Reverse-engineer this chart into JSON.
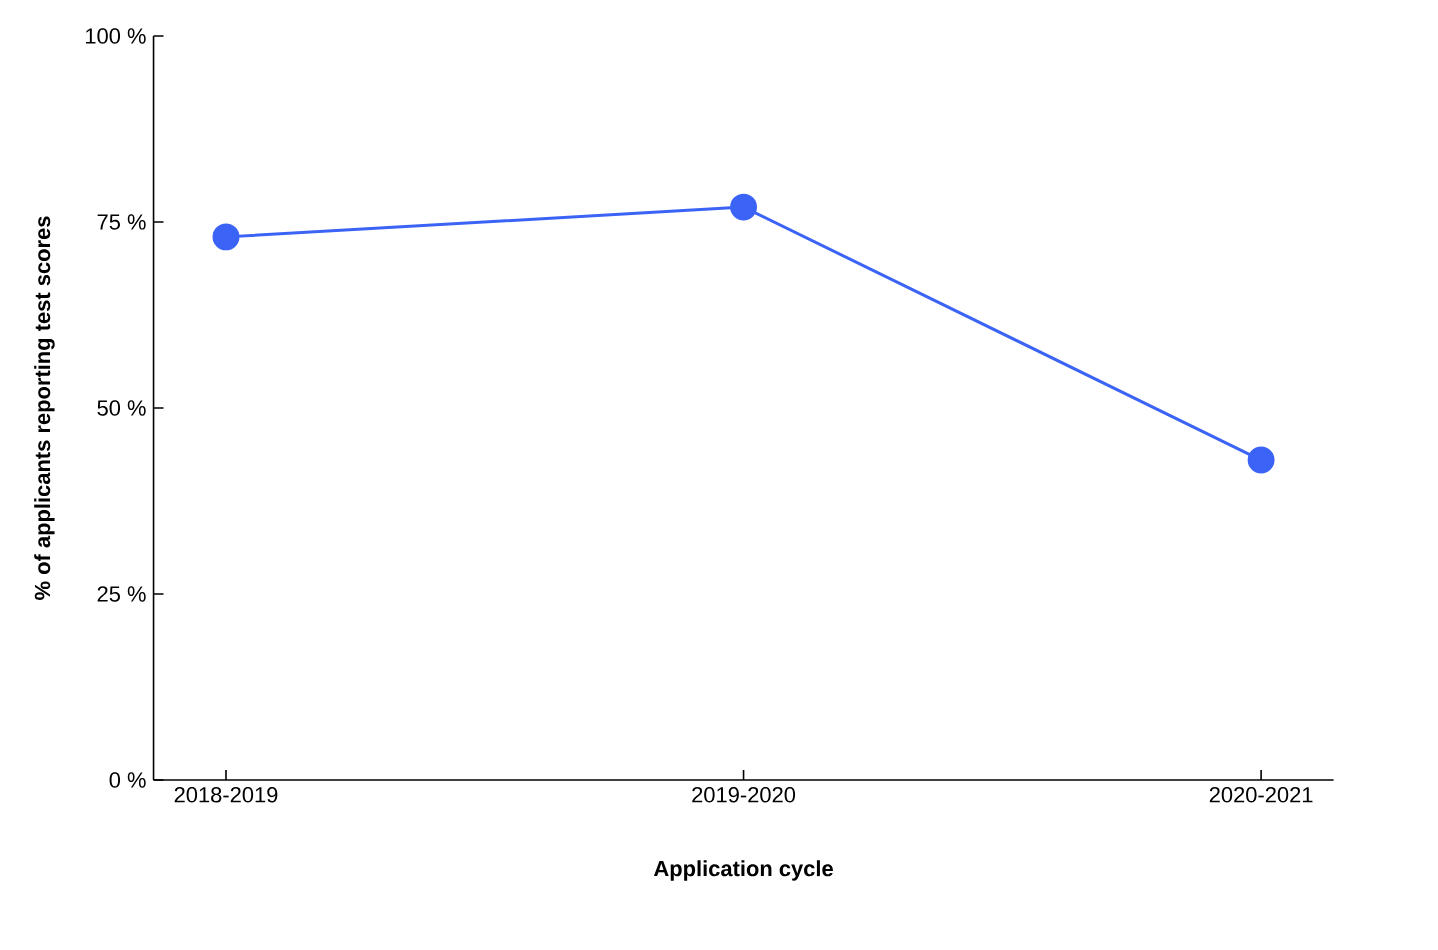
{
  "chart_data": {
    "type": "line",
    "xlabel": "Application cycle",
    "ylabel": "% of applicants reporting test scores",
    "categories": [
      "2018-2019",
      "2019-2020",
      "2020-2021"
    ],
    "series": [
      {
        "color": "#3b63f5",
        "values": [
          73,
          77,
          43
        ]
      }
    ],
    "ylim": [
      0,
      100
    ],
    "yticks": [
      {
        "value": 0,
        "label": "0 %"
      },
      {
        "value": 25,
        "label": "25 %"
      },
      {
        "value": 50,
        "label": "50 %"
      },
      {
        "value": 75,
        "label": "75 %"
      },
      {
        "value": 100,
        "label": "100 %"
      }
    ],
    "marker": "circle",
    "line_style": "solid"
  }
}
